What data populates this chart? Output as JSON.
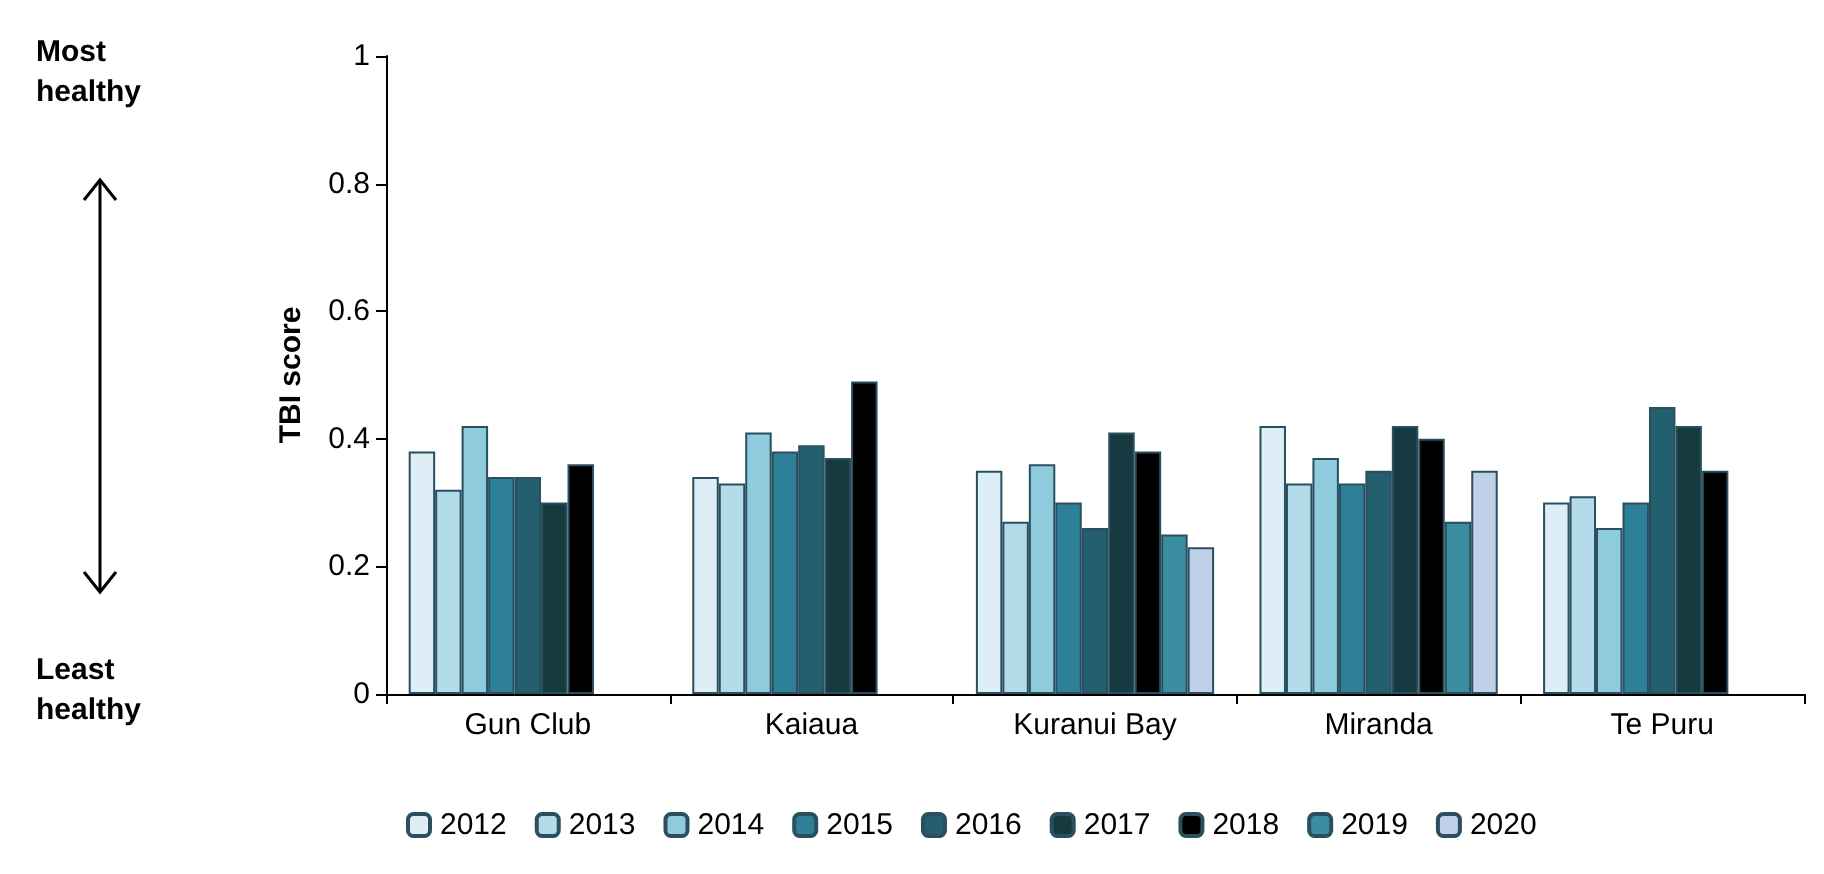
{
  "chart_data": {
    "type": "bar",
    "ylabel": "TBI score",
    "categories": [
      "Gun Club",
      "Kaiaua",
      "Kuranui Bay",
      "Miranda",
      "Te Puru"
    ],
    "ylim": [
      0,
      1
    ],
    "yticks": [
      0,
      0.2,
      0.4,
      0.6,
      0.8,
      1
    ],
    "grid": false,
    "legend": "bottom",
    "annotations": [
      "Most healthy",
      "Least healthy"
    ],
    "series": [
      {
        "name": "2012",
        "color": "#deeef6",
        "values": [
          0.38,
          0.34,
          0.35,
          0.42,
          0.3
        ]
      },
      {
        "name": "2013",
        "color": "#b4dbe9",
        "values": [
          0.32,
          0.33,
          0.27,
          0.33,
          0.31
        ]
      },
      {
        "name": "2014",
        "color": "#8ecbdc",
        "values": [
          0.42,
          0.41,
          0.36,
          0.37,
          0.26
        ]
      },
      {
        "name": "2015",
        "color": "#2e8099",
        "values": [
          0.34,
          0.38,
          0.3,
          0.33,
          0.3
        ]
      },
      {
        "name": "2016",
        "color": "#235f6e",
        "values": [
          0.34,
          0.39,
          0.26,
          0.35,
          0.45
        ]
      },
      {
        "name": "2017",
        "color": "#173940",
        "values": [
          0.3,
          0.37,
          0.41,
          0.42,
          0.42
        ]
      },
      {
        "name": "2018",
        "color": "#000000",
        "values": [
          0.36,
          0.49,
          0.38,
          0.4,
          0.35
        ]
      },
      {
        "name": "2019",
        "color": "#3a8ea0",
        "values": [
          null,
          null,
          0.25,
          0.27,
          null
        ]
      },
      {
        "name": "2020",
        "color": "#c0d0e8",
        "values": [
          null,
          null,
          0.23,
          0.35,
          null
        ]
      }
    ]
  }
}
